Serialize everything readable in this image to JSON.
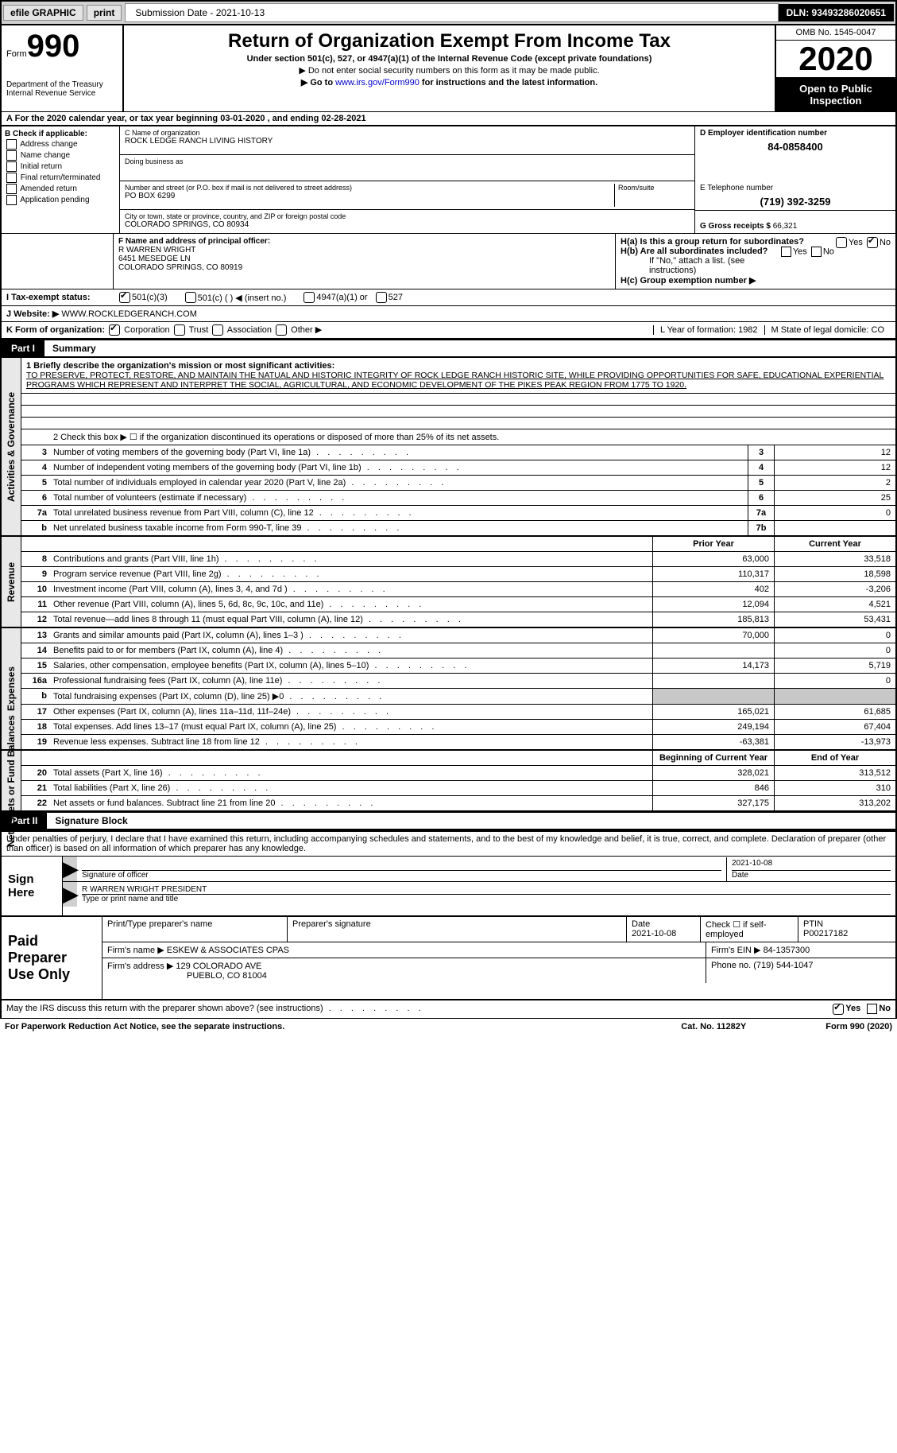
{
  "top": {
    "efile": "efile GRAPHIC",
    "print": "print",
    "sub_date": "Submission Date - 2021-10-13",
    "dln": "DLN: 93493286020651"
  },
  "hdr": {
    "form": "Form",
    "num": "990",
    "dept": "Department of the Treasury Internal Revenue Service",
    "title": "Return of Organization Exempt From Income Tax",
    "sub": "Under section 501(c), 527, or 4947(a)(1) of the Internal Revenue Code (except private foundations)",
    "instr1": "▶ Do not enter social security numbers on this form as it may be made public.",
    "instr2_a": "▶ Go to ",
    "instr2_link": "www.irs.gov/Form990",
    "instr2_b": " for instructions and the latest information.",
    "omb": "OMB No. 1545-0047",
    "year": "2020",
    "insp": "Open to Public Inspection"
  },
  "period": "For the 2020 calendar year, or tax year beginning 03-01-2020   , and ending 02-28-2021",
  "B": {
    "lbl": "B Check if applicable:",
    "opts": [
      "Address change",
      "Name change",
      "Initial return",
      "Final return/terminated",
      "Amended return",
      "Application pending"
    ]
  },
  "C": {
    "name_lbl": "C Name of organization",
    "name": "ROCK LEDGE RANCH LIVING HISTORY",
    "dba_lbl": "Doing business as",
    "dba": "",
    "addr_lbl": "Number and street (or P.O. box if mail is not delivered to street address)",
    "addr": "PO BOX 6299",
    "room_lbl": "Room/suite",
    "city_lbl": "City or town, state or province, country, and ZIP or foreign postal code",
    "city": "COLORADO SPRINGS, CO  80934"
  },
  "D": {
    "lbl": "D Employer identification number",
    "val": "84-0858400"
  },
  "E": {
    "lbl": "E Telephone number",
    "val": "(719) 392-3259"
  },
  "G": {
    "lbl": "G Gross receipts $",
    "val": "66,321"
  },
  "F": {
    "lbl": "F  Name and address of principal officer:",
    "l1": "R WARREN WRIGHT",
    "l2": "6451 MESEDGE LN",
    "l3": "COLORADO SPRINGS, CO  80919"
  },
  "H": {
    "a": "H(a)  Is this a group return for subordinates?",
    "yes": "Yes",
    "no": "No",
    "b": "H(b)  Are all subordinates included?",
    "note": "If \"No,\" attach a list. (see instructions)",
    "c": "H(c)  Group exemption number ▶"
  },
  "I": {
    "lbl": "I  Tax-exempt status:",
    "o1": "501(c)(3)",
    "o2": "501(c) (  ) ◀ (insert no.)",
    "o3": "4947(a)(1) or",
    "o4": "527"
  },
  "J": {
    "lbl": "J  Website: ▶",
    "val": "WWW.ROCKLEDGERANCH.COM"
  },
  "K": {
    "lbl": "K Form of organization:",
    "o1": "Corporation",
    "o2": "Trust",
    "o3": "Association",
    "o4": "Other ▶"
  },
  "L": "L Year of formation: 1982",
  "M": "M State of legal domicile: CO",
  "p1": {
    "num": "Part I",
    "title": "Summary",
    "tab1": "Activities & Governance",
    "tab2": "Revenue",
    "tab3": "Expenses",
    "tab4": "Net Assets or Fund Balances"
  },
  "mission": {
    "lbl": "1   Briefly describe the organization's mission or most significant activities:",
    "txt": "TO PRESERVE, PROTECT, RESTORE, AND MAINTAIN THE NATUAL AND HISTORIC INTEGRITY OF ROCK LEDGE RANCH HISTORIC SITE, WHILE PROVIDING OPPORTUNITIES FOR SAFE, EDUCATIONAL EXPERIENTIAL PROGRAMS WHICH REPRESENT AND INTERPRET THE SOCIAL, AGRICULTURAL, AND ECONOMIC DEVELOPMENT OF THE PIKES PEAK REGION FROM 1775 TO 1920."
  },
  "l2": "2   Check this box ▶ ☐  if the organization discontinued its operations or disposed of more than 25% of its net assets.",
  "gov": [
    {
      "n": "3",
      "t": "Number of voting members of the governing body (Part VI, line 1a)",
      "b": "3",
      "v": "12"
    },
    {
      "n": "4",
      "t": "Number of independent voting members of the governing body (Part VI, line 1b)",
      "b": "4",
      "v": "12"
    },
    {
      "n": "5",
      "t": "Total number of individuals employed in calendar year 2020 (Part V, line 2a)",
      "b": "5",
      "v": "2"
    },
    {
      "n": "6",
      "t": "Total number of volunteers (estimate if necessary)",
      "b": "6",
      "v": "25"
    },
    {
      "n": "7a",
      "t": "Total unrelated business revenue from Part VIII, column (C), line 12",
      "b": "7a",
      "v": "0"
    },
    {
      "n": "b",
      "t": "Net unrelated business taxable income from Form 990-T, line 39",
      "b": "7b",
      "v": ""
    }
  ],
  "hdr2": {
    "prior": "Prior Year",
    "cur": "Current Year"
  },
  "rev": [
    {
      "n": "8",
      "t": "Contributions and grants (Part VIII, line 1h)",
      "p": "63,000",
      "c": "33,518"
    },
    {
      "n": "9",
      "t": "Program service revenue (Part VIII, line 2g)",
      "p": "110,317",
      "c": "18,598"
    },
    {
      "n": "10",
      "t": "Investment income (Part VIII, column (A), lines 3, 4, and 7d )",
      "p": "402",
      "c": "-3,206"
    },
    {
      "n": "11",
      "t": "Other revenue (Part VIII, column (A), lines 5, 6d, 8c, 9c, 10c, and 11e)",
      "p": "12,094",
      "c": "4,521"
    },
    {
      "n": "12",
      "t": "Total revenue—add lines 8 through 11 (must equal Part VIII, column (A), line 12)",
      "p": "185,813",
      "c": "53,431"
    }
  ],
  "exp": [
    {
      "n": "13",
      "t": "Grants and similar amounts paid (Part IX, column (A), lines 1–3 )",
      "p": "70,000",
      "c": "0"
    },
    {
      "n": "14",
      "t": "Benefits paid to or for members (Part IX, column (A), line 4)",
      "p": "",
      "c": "0"
    },
    {
      "n": "15",
      "t": "Salaries, other compensation, employee benefits (Part IX, column (A), lines 5–10)",
      "p": "14,173",
      "c": "5,719"
    },
    {
      "n": "16a",
      "t": "Professional fundraising fees (Part IX, column (A), line 11e)",
      "p": "",
      "c": "0"
    },
    {
      "n": "b",
      "t": "Total fundraising expenses (Part IX, column (D), line 25) ▶0",
      "p": "shade",
      "c": "shade"
    },
    {
      "n": "17",
      "t": "Other expenses (Part IX, column (A), lines 11a–11d, 11f–24e)",
      "p": "165,021",
      "c": "61,685"
    },
    {
      "n": "18",
      "t": "Total expenses. Add lines 13–17 (must equal Part IX, column (A), line 25)",
      "p": "249,194",
      "c": "67,404"
    },
    {
      "n": "19",
      "t": "Revenue less expenses. Subtract line 18 from line 12",
      "p": "-63,381",
      "c": "-13,973"
    }
  ],
  "hdr3": {
    "beg": "Beginning of Current Year",
    "end": "End of Year"
  },
  "bal": [
    {
      "n": "20",
      "t": "Total assets (Part X, line 16)",
      "p": "328,021",
      "c": "313,512"
    },
    {
      "n": "21",
      "t": "Total liabilities (Part X, line 26)",
      "p": "846",
      "c": "310"
    },
    {
      "n": "22",
      "t": "Net assets or fund balances. Subtract line 21 from line 20",
      "p": "327,175",
      "c": "313,202"
    }
  ],
  "p2": {
    "num": "Part II",
    "title": "Signature Block"
  },
  "sig": {
    "decl": "Under penalties of perjury, I declare that I have examined this return, including accompanying schedules and statements, and to the best of my knowledge and belief, it is true, correct, and complete. Declaration of preparer (other than officer) is based on all information of which preparer has any knowledge.",
    "here": "Sign Here",
    "date": "2021-10-08",
    "sig_of": "Signature of officer",
    "d": "Date",
    "name": "R WARREN WRIGHT PRESIDENT",
    "name_lbl": "Type or print name and title"
  },
  "prep": {
    "lbl": "Paid Preparer Use Only",
    "h1": "Print/Type preparer's name",
    "h2": "Preparer's signature",
    "h3": "Date",
    "h3v": "2021-10-08",
    "h4": "Check ☐ if self-employed",
    "h5": "PTIN",
    "h5v": "P00217182",
    "firm": "Firm's name    ▶",
    "firm_v": "ESKEW & ASSOCIATES CPAS",
    "ein": "Firm's EIN ▶",
    "ein_v": "84-1357300",
    "addr": "Firm's address ▶",
    "addr_v1": "129 COLORADO AVE",
    "addr_v2": "PUEBLO, CO  81004",
    "phone": "Phone no.",
    "phone_v": "(719) 544-1047"
  },
  "foot": {
    "q": "May the IRS discuss this return with the preparer shown above? (see instructions)",
    "paperwork": "For Paperwork Reduction Act Notice, see the separate instructions.",
    "cat": "Cat. No. 11282Y",
    "form": "Form 990 (2020)",
    "yes": "Yes",
    "no": "No"
  }
}
